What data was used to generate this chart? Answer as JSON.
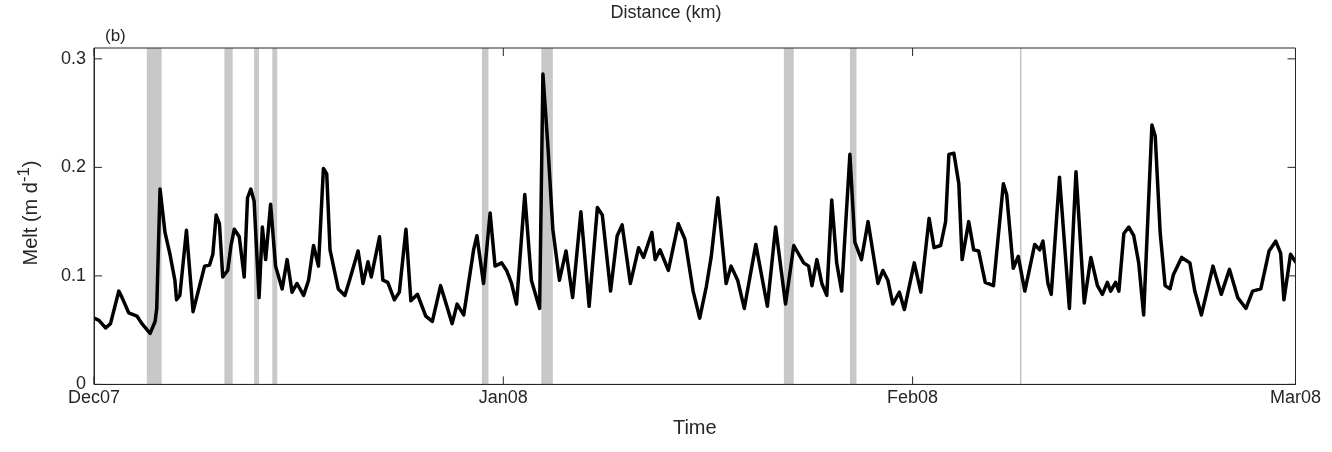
{
  "chart_data": {
    "type": "line",
    "title": "(b)",
    "xlabel": "Time",
    "ylabel": "Melt (m d$^{-1}$)",
    "annotations": [
      "Distance (km)"
    ],
    "x": [
      "2007-12-01T00:00",
      "2007-12-01T09:00",
      "2007-12-01T21:00",
      "2007-12-02T06:00",
      "2007-12-02T21:00",
      "2007-12-03T03:00",
      "2007-12-03T15:00",
      "2007-12-04T06:00",
      "2007-12-04T15:00",
      "2007-12-05T06:00",
      "2007-12-05T15:00",
      "2007-12-05T18:00",
      "2007-12-06T00:00",
      "2007-12-06T09:00",
      "2007-12-06T18:00",
      "2007-12-07T03:00",
      "2007-12-07T06:00",
      "2007-12-07T12:00",
      "2007-12-08T00:00",
      "2007-12-08T12:00",
      "2007-12-08T21:00",
      "2007-12-09T09:00",
      "2007-12-09T18:00",
      "2007-12-10T00:00",
      "2007-12-10T06:00",
      "2007-12-10T12:00",
      "2007-12-10T18:00",
      "2007-12-11T03:00",
      "2007-12-11T09:00",
      "2007-12-11T15:00",
      "2007-12-12T00:00",
      "2007-12-12T09:00",
      "2007-12-12T15:00",
      "2007-12-12T21:00",
      "2007-12-13T03:00",
      "2007-12-13T12:00",
      "2007-12-13T18:00",
      "2007-12-14T00:00",
      "2007-12-14T09:00",
      "2007-12-14T18:00",
      "2007-12-15T06:00",
      "2007-12-15T15:00",
      "2007-12-16T00:00",
      "2007-12-16T09:00",
      "2007-12-16T21:00",
      "2007-12-17T06:00",
      "2007-12-17T15:00",
      "2007-12-18T00:00",
      "2007-12-18T09:00",
      "2007-12-18T15:00",
      "2007-12-18T21:00",
      "2007-12-19T12:00",
      "2007-12-20T00:00",
      "2007-12-20T09:00",
      "2007-12-21T00:00",
      "2007-12-21T09:00",
      "2007-12-21T18:00",
      "2007-12-22T00:00",
      "2007-12-22T15:00",
      "2007-12-22T21:00",
      "2007-12-23T06:00",
      "2007-12-23T18:00",
      "2007-12-24T03:00",
      "2007-12-24T15:00",
      "2007-12-25T00:00",
      "2007-12-25T12:00",
      "2007-12-26T03:00",
      "2007-12-26T15:00",
      "2007-12-27T06:00",
      "2007-12-28T03:00",
      "2007-12-28T12:00",
      "2007-12-29T00:00",
      "2007-12-29T18:00",
      "2007-12-30T00:00",
      "2007-12-30T12:00",
      "2007-12-31T00:00",
      "2007-12-31T09:00",
      "2007-12-31T21:00",
      "2008-01-01T06:00",
      "2008-01-01T15:00",
      "2008-01-02T00:00",
      "2008-01-02T15:00",
      "2008-01-03T03:00",
      "2008-01-03T18:00",
      "2008-01-04T00:00",
      "2008-01-04T09:00",
      "2008-01-04T18:00",
      "2008-01-05T06:00",
      "2008-01-05T18:00",
      "2008-01-06T06:00",
      "2008-01-06T21:00",
      "2008-01-07T12:00",
      "2008-01-08T03:00",
      "2008-01-08T12:00",
      "2008-01-09T03:00",
      "2008-01-09T15:00",
      "2008-01-10T00:00",
      "2008-01-10T15:00",
      "2008-01-11T06:00",
      "2008-01-11T15:00",
      "2008-01-12T06:00",
      "2008-01-12T12:00",
      "2008-01-12T21:00",
      "2008-01-13T12:00",
      "2008-01-14T06:00",
      "2008-01-14T18:00",
      "2008-01-15T09:00",
      "2008-01-15T21:00",
      "2008-01-16T09:00",
      "2008-01-16T18:00",
      "2008-01-17T06:00",
      "2008-01-17T21:00",
      "2008-01-18T06:00",
      "2008-01-18T18:00",
      "2008-01-19T06:00",
      "2008-01-20T03:00",
      "2008-01-21T00:00",
      "2008-01-21T15:00",
      "2008-01-22T09:00",
      "2008-01-23T00:00",
      "2008-01-23T18:00",
      "2008-01-24T03:00",
      "2008-01-24T09:00",
      "2008-01-24T18:00",
      "2008-01-25T03:00",
      "2008-01-25T12:00",
      "2008-01-25T21:00",
      "2008-01-26T06:00",
      "2008-01-26T15:00",
      "2008-01-27T06:00",
      "2008-01-27T15:00",
      "2008-01-28T03:00",
      "2008-01-28T15:00",
      "2008-01-29T09:00",
      "2008-01-29T18:00",
      "2008-01-30T03:00",
      "2008-01-30T12:00",
      "2008-01-31T00:00",
      "2008-01-31T09:00",
      "2008-02-01T03:00",
      "2008-02-01T15:00",
      "2008-02-02T06:00",
      "2008-02-02T15:00",
      "2008-02-03T03:00",
      "2008-02-03T12:00",
      "2008-02-03T18:00",
      "2008-02-04T03:00",
      "2008-02-04T12:00",
      "2008-02-04T18:00",
      "2008-02-05T06:00",
      "2008-02-05T15:00",
      "2008-02-06T00:00",
      "2008-02-06T12:00",
      "2008-02-07T03:00",
      "2008-02-07T21:00",
      "2008-02-08T03:00",
      "2008-02-08T15:00",
      "2008-02-09T00:00",
      "2008-02-09T12:00",
      "2008-02-10T06:00",
      "2008-02-10T15:00",
      "2008-02-10T21:00",
      "2008-02-11T06:00",
      "2008-02-11T12:00",
      "2008-02-12T03:00",
      "2008-02-12T21:00",
      "2008-02-13T09:00",
      "2008-02-14T00:00",
      "2008-02-14T12:00",
      "2008-02-15T00:00",
      "2008-02-15T09:00",
      "2008-02-15T18:00",
      "2008-02-16T00:00",
      "2008-02-16T09:00",
      "2008-02-16T15:00",
      "2008-02-17T00:00",
      "2008-02-17T09:00",
      "2008-02-17T18:00",
      "2008-02-18T03:00",
      "2008-02-18T12:00",
      "2008-02-19T03:00",
      "2008-02-19T09:00",
      "2008-02-19T18:00",
      "2008-02-20T03:00",
      "2008-02-20T12:00",
      "2008-02-20T18:00",
      "2008-02-21T09:00",
      "2008-02-22T00:00",
      "2008-02-22T09:00",
      "2008-02-22T21:00",
      "2008-02-23T18:00",
      "2008-02-24T09:00",
      "2008-02-25T00:00",
      "2008-02-25T15:00",
      "2008-02-26T06:00",
      "2008-02-26T18:00",
      "2008-02-27T09:00",
      "2008-02-28T00:00",
      "2008-02-28T12:00",
      "2008-02-28T21:00",
      "2008-02-29T03:00",
      "2008-02-29T15:00",
      "2008-03-01T00:00"
    ],
    "series": [
      {
        "color": "#000000",
        "values": [
          0.061,
          0.059,
          0.052,
          0.056,
          0.086,
          0.08,
          0.066,
          0.063,
          0.056,
          0.047,
          0.058,
          0.07,
          0.18,
          0.14,
          0.12,
          0.096,
          0.078,
          0.082,
          0.142,
          0.067,
          0.085,
          0.109,
          0.11,
          0.12,
          0.156,
          0.148,
          0.099,
          0.105,
          0.128,
          0.143,
          0.136,
          0.099,
          0.172,
          0.18,
          0.169,
          0.08,
          0.145,
          0.115,
          0.166,
          0.109,
          0.088,
          0.115,
          0.085,
          0.093,
          0.082,
          0.096,
          0.128,
          0.109,
          0.199,
          0.194,
          0.124,
          0.088,
          0.082,
          0.097,
          0.123,
          0.093,
          0.113,
          0.099,
          0.136,
          0.096,
          0.094,
          0.078,
          0.085,
          0.143,
          0.077,
          0.083,
          0.063,
          0.058,
          0.091,
          0.056,
          0.074,
          0.064,
          0.124,
          0.137,
          0.093,
          0.158,
          0.109,
          0.112,
          0.105,
          0.093,
          0.074,
          0.175,
          0.096,
          0.07,
          0.286,
          0.22,
          0.143,
          0.096,
          0.123,
          0.08,
          0.159,
          0.072,
          0.163,
          0.156,
          0.086,
          0.137,
          0.147,
          0.093,
          0.126,
          0.117,
          0.14,
          0.115,
          0.124,
          0.105,
          0.148,
          0.134,
          0.086,
          0.061,
          0.09,
          0.118,
          0.172,
          0.093,
          0.109,
          0.096,
          0.07,
          0.129,
          0.072,
          0.145,
          0.074,
          0.128,
          0.112,
          0.109,
          0.091,
          0.115,
          0.093,
          0.082,
          0.17,
          0.112,
          0.086,
          0.212,
          0.131,
          0.115,
          0.15,
          0.093,
          0.105,
          0.096,
          0.074,
          0.085,
          0.069,
          0.112,
          0.085,
          0.153,
          0.126,
          0.128,
          0.15,
          0.212,
          0.213,
          0.185,
          0.115,
          0.15,
          0.124,
          0.123,
          0.094,
          0.091,
          0.185,
          0.175,
          0.107,
          0.118,
          0.086,
          0.129,
          0.124,
          0.132,
          0.093,
          0.083,
          0.191,
          0.07,
          0.196,
          0.075,
          0.117,
          0.091,
          0.083,
          0.094,
          0.086,
          0.094,
          0.086,
          0.139,
          0.145,
          0.137,
          0.112,
          0.064,
          0.239,
          0.229,
          0.14,
          0.091,
          0.088,
          0.101,
          0.117,
          0.112,
          0.086,
          0.064,
          0.109,
          0.083,
          0.106,
          0.08,
          0.07,
          0.086,
          0.088,
          0.123,
          0.132,
          0.121,
          0.078,
          0.12,
          0.113
        ]
      }
    ],
    "xlim": [
      "2007-12-01",
      "2008-03-01"
    ],
    "xticks": [
      {
        "value": "2007-12-01",
        "label": "Dec07"
      },
      {
        "value": "2008-01-01",
        "label": "Jan08"
      },
      {
        "value": "2008-02-01",
        "label": "Feb08"
      },
      {
        "value": "2008-03-01",
        "label": "Mar08"
      }
    ],
    "ylim": [
      0,
      0.31
    ],
    "yticks": [
      0,
      0.1,
      0.2,
      0.3
    ],
    "marker": "none",
    "line_style": "solid",
    "bands": [
      {
        "axis": "x",
        "from": "2007-12-05T00:00",
        "to": "2007-12-06T03:00",
        "color": "#c8c8c8"
      },
      {
        "axis": "x",
        "from": "2007-12-10T21:00",
        "to": "2007-12-11T12:00",
        "color": "#c8c8c8"
      },
      {
        "axis": "x",
        "from": "2007-12-13T03:00",
        "to": "2007-12-13T12:00",
        "color": "#c8c8c8"
      },
      {
        "axis": "x",
        "from": "2007-12-14T12:00",
        "to": "2007-12-14T21:00",
        "color": "#c8c8c8"
      },
      {
        "axis": "x",
        "from": "2007-12-30T09:00",
        "to": "2007-12-30T21:00",
        "color": "#c8c8c8"
      },
      {
        "axis": "x",
        "from": "2008-01-03T21:00",
        "to": "2008-01-04T18:00",
        "color": "#c8c8c8"
      },
      {
        "axis": "x",
        "from": "2008-01-22T06:00",
        "to": "2008-01-23T00:00",
        "color": "#c8c8c8"
      },
      {
        "axis": "x",
        "from": "2008-01-27T06:00",
        "to": "2008-01-27T18:00",
        "color": "#c8c8c8"
      },
      {
        "axis": "x",
        "from": "2008-02-09T03:00",
        "to": "2008-02-09T06:00",
        "color": "#c8c8c8"
      }
    ]
  }
}
